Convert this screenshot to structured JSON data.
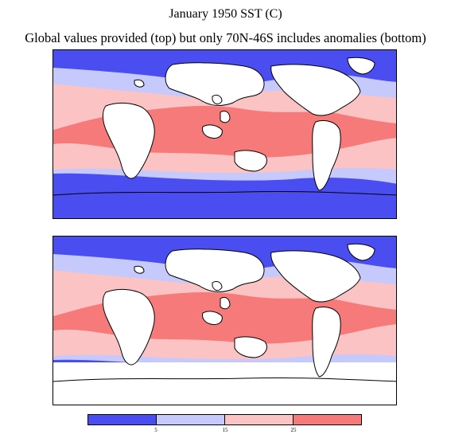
{
  "title": "January 1950 SST (C)",
  "subtitle": "Global values provided (top) but only 70N-46S includes anomalies (bottom)",
  "colors": {
    "band_lt5": "#4a4ef0",
    "band_5_15": "#c6c9fb",
    "band_15_25": "#fbc3c3",
    "band_gt25": "#f77a7a",
    "masked": "#ffffff",
    "coastline": "#000000"
  },
  "legend": {
    "ticks": [
      "5",
      "15",
      "25"
    ]
  },
  "maps": [
    {
      "panel": "top",
      "coverage": "global"
    },
    {
      "panel": "bottom",
      "coverage": "70N-46S"
    }
  ],
  "chart_data": {
    "type": "heatmap",
    "variable": "SST",
    "units": "C",
    "levels": [
      5,
      15,
      25
    ],
    "bands": [
      "<5",
      "5-15",
      "15-25",
      ">25"
    ]
  }
}
